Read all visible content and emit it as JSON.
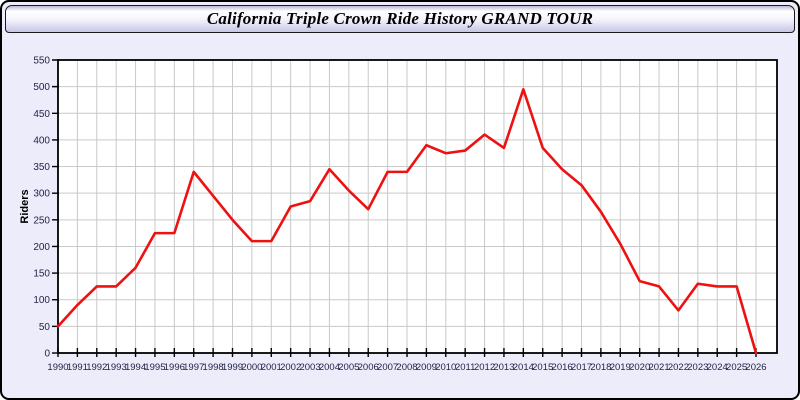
{
  "window": {
    "title": "California Triple Crown Ride History GRAND TOUR"
  },
  "chart_data": {
    "type": "line",
    "title": "California Triple Crown Ride History GRAND TOUR",
    "xlabel": "",
    "ylabel": "Riders",
    "ylim": [
      0,
      550
    ],
    "ytick_step": 50,
    "grid": true,
    "legend_position": "none",
    "x": [
      1990,
      1991,
      1992,
      1993,
      1994,
      1995,
      1996,
      1997,
      1998,
      1999,
      2000,
      2001,
      2002,
      2003,
      2004,
      2005,
      2006,
      2007,
      2008,
      2009,
      2010,
      2011,
      2012,
      2013,
      2014,
      2015,
      2016,
      2017,
      2018,
      2019,
      2020,
      2021,
      2022,
      2023,
      2024,
      2025,
      2026
    ],
    "series": [
      {
        "name": "Riders",
        "values": [
          50,
          90,
          125,
          125,
          160,
          225,
          225,
          340,
          295,
          250,
          210,
          210,
          275,
          285,
          345,
          305,
          270,
          340,
          340,
          390,
          375,
          380,
          410,
          385,
          495,
          385,
          345,
          315,
          265,
          205,
          135,
          125,
          80,
          130,
          125,
          125,
          0
        ]
      }
    ]
  },
  "colors": {
    "line": "#ee1111",
    "grid": "#c9c9c9",
    "plot_background": "#ffffff",
    "page_background": "#ececfa",
    "axis": "#000000",
    "tick_label": "#24244a",
    "title_text": "#000000"
  }
}
